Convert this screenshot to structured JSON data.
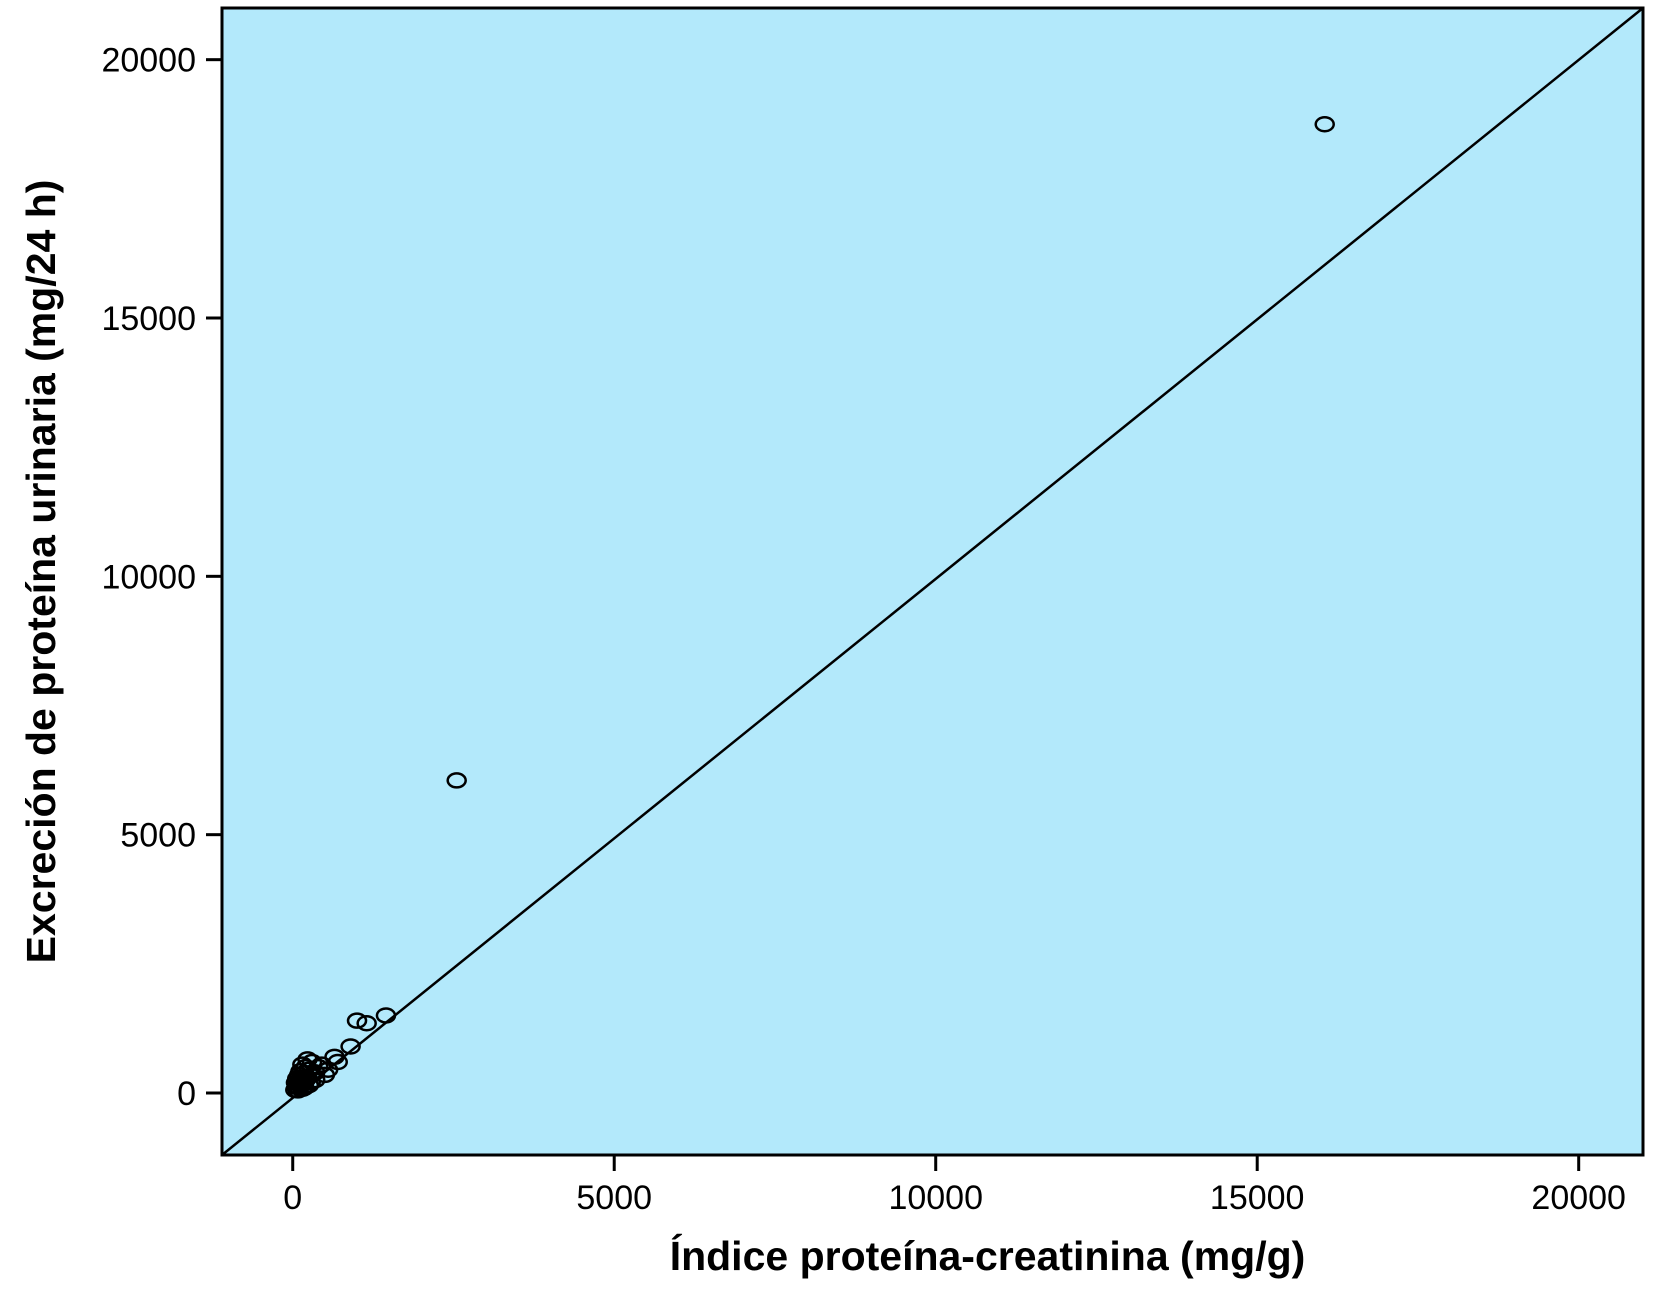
{
  "chart_data": {
    "type": "scatter",
    "title": "",
    "xlabel": "Índice proteína-creatinina (mg/g)",
    "ylabel": "Excreción de proteína urinaria (mg/24 h)",
    "xlim": [
      -1100,
      21000
    ],
    "ylim": [
      -1200,
      21000
    ],
    "xticks": [
      0,
      5000,
      10000,
      15000,
      20000
    ],
    "yticks": [
      0,
      5000,
      10000,
      15000,
      20000
    ],
    "grid": false,
    "background_color": "#b3e9fb",
    "marker": "open-circle",
    "series": [
      {
        "points": [
          [
            16050,
            18750
          ],
          [
            2550,
            6050
          ],
          [
            1450,
            1500
          ],
          [
            1150,
            1350
          ],
          [
            1000,
            1400
          ],
          [
            900,
            900
          ],
          [
            700,
            600
          ],
          [
            650,
            700
          ],
          [
            550,
            450
          ],
          [
            500,
            350
          ],
          [
            450,
            550
          ],
          [
            400,
            500
          ],
          [
            350,
            400
          ],
          [
            350,
            250
          ],
          [
            300,
            600
          ],
          [
            300,
            350
          ],
          [
            280,
            200
          ],
          [
            250,
            450
          ],
          [
            250,
            150
          ],
          [
            230,
            650
          ],
          [
            220,
            300
          ],
          [
            200,
            500
          ],
          [
            200,
            250
          ],
          [
            180,
            100
          ],
          [
            170,
            380
          ],
          [
            160,
            200
          ],
          [
            150,
            550
          ],
          [
            150,
            80
          ],
          [
            140,
            300
          ],
          [
            130,
            150
          ],
          [
            120,
            420
          ],
          [
            110,
            250
          ],
          [
            100,
            100
          ],
          [
            100,
            350
          ],
          [
            90,
            180
          ],
          [
            80,
            50
          ],
          [
            70,
            280
          ],
          [
            60,
            120
          ],
          [
            50,
            200
          ],
          [
            40,
            60
          ]
        ]
      }
    ],
    "reference_line": {
      "type": "identity",
      "from": [
        -1100,
        -1200
      ],
      "to": [
        21000,
        21000
      ]
    }
  }
}
